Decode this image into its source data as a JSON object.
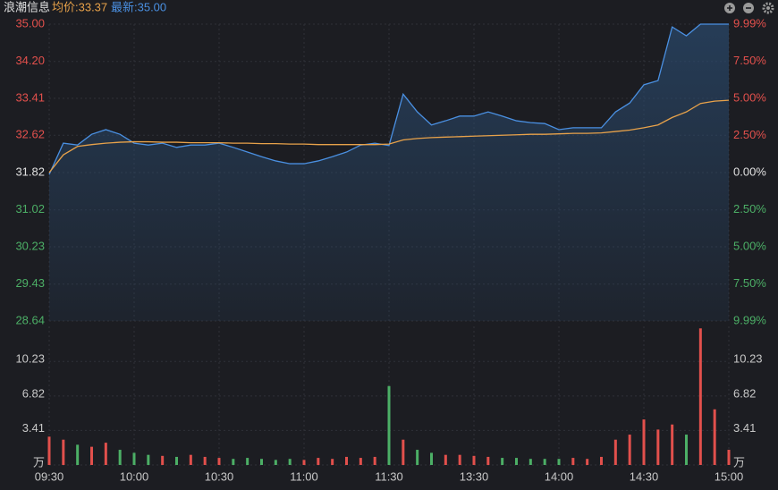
{
  "chart_data": {
    "type": "line",
    "title": "浪潮信息",
    "average_label": "均价:33.37",
    "latest_label": "最新:35.00",
    "x": [
      0,
      5,
      10,
      15,
      20,
      25,
      30,
      35,
      40,
      45,
      50,
      55,
      60,
      65,
      70,
      75,
      80,
      85,
      90,
      95,
      100,
      105,
      110,
      115,
      120,
      125,
      130,
      135,
      140,
      145,
      150,
      155,
      160,
      165,
      170,
      175,
      180,
      185,
      190,
      195,
      200,
      205,
      210,
      215,
      220,
      225,
      230,
      235,
      240
    ],
    "xlim": [
      0,
      240
    ],
    "xticks": [
      {
        "value": 0,
        "label": "09:30"
      },
      {
        "value": 30,
        "label": "10:00"
      },
      {
        "value": 60,
        "label": "10:30"
      },
      {
        "value": 90,
        "label": "11:00"
      },
      {
        "value": 120,
        "label": "11:30"
      },
      {
        "value": 150,
        "label": "13:30"
      },
      {
        "value": 180,
        "label": "14:00"
      },
      {
        "value": 210,
        "label": "14:30"
      },
      {
        "value": 240,
        "label": "15:00"
      }
    ],
    "series": [
      {
        "name": "最新",
        "color": "#4a90e2",
        "values": [
          31.78,
          32.45,
          32.41,
          32.64,
          32.74,
          32.64,
          32.45,
          32.41,
          32.45,
          32.36,
          32.41,
          32.41,
          32.45,
          32.36,
          32.26,
          32.16,
          32.07,
          32.01,
          32.01,
          32.07,
          32.16,
          32.26,
          32.41,
          32.45,
          32.4,
          33.5,
          33.12,
          32.84,
          32.93,
          33.03,
          33.03,
          33.12,
          33.03,
          32.93,
          32.89,
          32.87,
          32.74,
          32.78,
          32.78,
          32.78,
          33.12,
          33.31,
          33.7,
          33.79,
          34.94,
          34.75,
          35.0,
          35.0,
          35.0
        ]
      },
      {
        "name": "均价",
        "color": "#e8a24a",
        "values": [
          31.82,
          32.2,
          32.38,
          32.42,
          32.45,
          32.47,
          32.48,
          32.48,
          32.47,
          32.47,
          32.46,
          32.46,
          32.46,
          32.45,
          32.45,
          32.44,
          32.44,
          32.43,
          32.43,
          32.42,
          32.42,
          32.42,
          32.42,
          32.42,
          32.43,
          32.52,
          32.55,
          32.57,
          32.58,
          32.59,
          32.6,
          32.61,
          32.62,
          32.63,
          32.64,
          32.64,
          32.65,
          32.66,
          32.66,
          32.67,
          32.7,
          32.73,
          32.78,
          32.84,
          33.0,
          33.12,
          33.3,
          33.35,
          33.37
        ]
      }
    ],
    "ylim": [
      28.64,
      35.0
    ],
    "yticks": [
      {
        "value": 35.0,
        "label": "35.00"
      },
      {
        "value": 34.2,
        "label": "34.20"
      },
      {
        "value": 33.41,
        "label": "33.41"
      },
      {
        "value": 32.62,
        "label": "32.62"
      },
      {
        "value": 31.82,
        "label": "31.82"
      },
      {
        "value": 31.02,
        "label": "31.02"
      },
      {
        "value": 30.23,
        "label": "30.23"
      },
      {
        "value": 29.43,
        "label": "29.43"
      },
      {
        "value": 28.64,
        "label": "28.64"
      }
    ],
    "y2lim": [
      -9.99,
      9.99
    ],
    "y2ticks": [
      {
        "value": 9.99,
        "label": "9.99%"
      },
      {
        "value": 7.5,
        "label": "7.50%"
      },
      {
        "value": 5.0,
        "label": "5.00%"
      },
      {
        "value": 2.5,
        "label": "2.50%"
      },
      {
        "value": 0,
        "label": "0.00%"
      },
      {
        "value": -2.5,
        "label": "2.50%"
      },
      {
        "value": -5.0,
        "label": "5.00%"
      },
      {
        "value": -7.5,
        "label": "7.50%"
      },
      {
        "value": -9.99,
        "label": "9.99%"
      }
    ],
    "volume": {
      "values": [
        2.8,
        2.5,
        2.0,
        1.8,
        2.2,
        1.5,
        1.2,
        1.0,
        0.9,
        0.8,
        1.0,
        0.8,
        0.7,
        0.6,
        0.7,
        0.6,
        0.5,
        0.6,
        0.5,
        0.7,
        0.6,
        0.8,
        0.7,
        0.8,
        7.8,
        2.5,
        1.5,
        1.2,
        1.0,
        1.0,
        0.9,
        0.8,
        0.7,
        0.7,
        0.6,
        0.6,
        0.6,
        0.7,
        0.6,
        0.8,
        2.5,
        3.0,
        4.5,
        3.5,
        4.0,
        3.0,
        13.5,
        5.5,
        1.5
      ],
      "ylim": [
        0,
        13.7
      ],
      "yticks": [
        {
          "value": 0,
          "label": "万"
        },
        3.41,
        6.82,
        10.23
      ]
    },
    "grid": true
  }
}
